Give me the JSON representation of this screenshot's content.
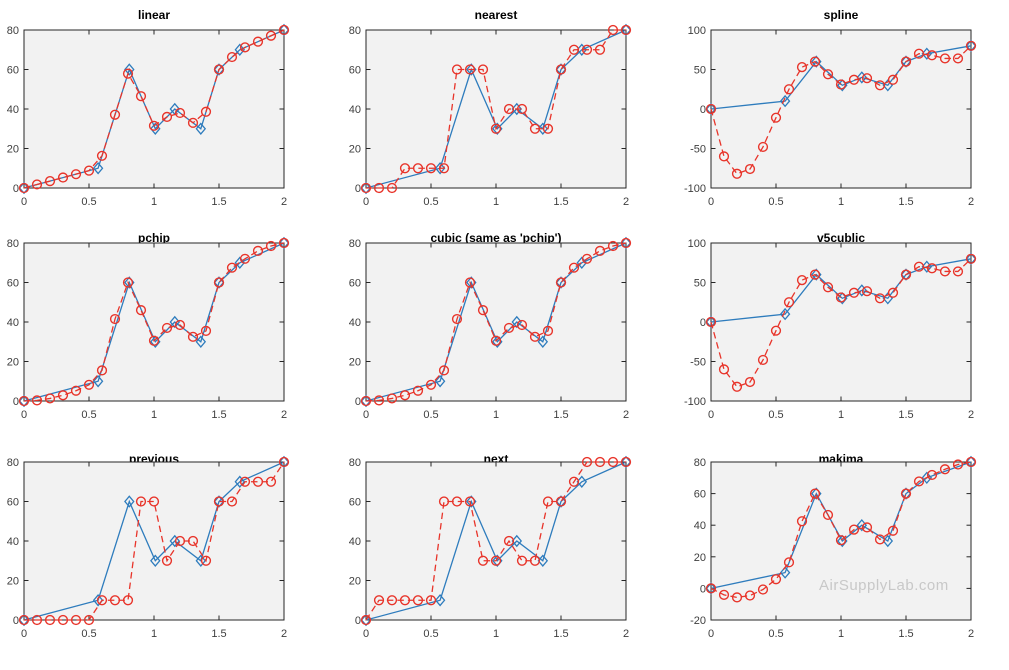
{
  "colors": {
    "blue": "#2e7cbd",
    "red": "#e8342a",
    "axes_bg": "#f2f2f2",
    "axis": "#262626",
    "tick_label": "#3e3e3e",
    "title": "#000000",
    "watermark": "#c8c8c8",
    "figure_bg": "#ffffff"
  },
  "watermark": {
    "text": "AirSupplyLab.com"
  },
  "chart_data": {
    "type": "line",
    "layout": "3x3 grid of subplots comparing interp1 methods",
    "grid": "off",
    "legend": "none",
    "xlim": [
      0,
      2
    ],
    "xticks": [
      0,
      0.5,
      1,
      1.5,
      2
    ],
    "xtick_labels": [
      "0",
      "0.5",
      "1",
      "1.5",
      "2"
    ],
    "sample_series": {
      "name": "sample-points",
      "marker": "diamond",
      "color_key": "blue",
      "line_style": "solid",
      "x": [
        0,
        0.57,
        0.81,
        1.01,
        1.16,
        1.36,
        1.5,
        1.66,
        2
      ],
      "y": [
        0,
        10,
        60,
        30,
        40,
        30,
        60,
        70,
        80
      ]
    },
    "query_series": {
      "name": "interpolated-points",
      "marker": "circle",
      "color_key": "red",
      "line_style": "dashed",
      "x": [
        0,
        0.1,
        0.2,
        0.3,
        0.4,
        0.5,
        0.6,
        0.7,
        0.8,
        0.9,
        1,
        1.1,
        1.2,
        1.3,
        1.4,
        1.5,
        1.6,
        1.7,
        1.8,
        1.9,
        2
      ]
    },
    "subplots": [
      {
        "title": "linear",
        "ylim": [
          0,
          80
        ],
        "yticks": [
          0,
          20,
          40,
          60,
          80
        ],
        "values": [
          0,
          1.8,
          3.5,
          5.3,
          7,
          8.8,
          16.3,
          37.1,
          57.9,
          46.5,
          31.5,
          36,
          38,
          33,
          38.6,
          60,
          66.3,
          71.2,
          74.1,
          77.1,
          80
        ]
      },
      {
        "title": "nearest",
        "ylim": [
          0,
          80
        ],
        "yticks": [
          0,
          20,
          40,
          60,
          80
        ],
        "values": [
          0,
          0,
          0,
          10,
          10,
          10,
          10,
          60,
          60,
          60,
          30,
          40,
          40,
          30,
          30,
          60,
          70,
          70,
          70,
          80,
          80
        ]
      },
      {
        "title": "spline",
        "ylim": [
          -100,
          100
        ],
        "yticks": [
          -100,
          -50,
          0,
          50,
          100
        ],
        "values": [
          0,
          -60,
          -82,
          -76,
          -48,
          -11,
          25,
          53,
          60,
          44,
          31,
          37,
          39,
          30,
          37,
          60,
          70,
          68,
          64,
          64,
          80
        ]
      },
      {
        "title": "pchip",
        "ylim": [
          0,
          80
        ],
        "yticks": [
          0,
          20,
          40,
          60,
          80
        ],
        "values": [
          0,
          0.3,
          1.3,
          2.9,
          5.2,
          8.2,
          15.5,
          41.5,
          60,
          46,
          30.5,
          37,
          38.5,
          32.5,
          35.5,
          60,
          67.5,
          72,
          76,
          78.5,
          80
        ]
      },
      {
        "title": "cubic (same as 'pchip')",
        "ylim": [
          0,
          80
        ],
        "yticks": [
          0,
          20,
          40,
          60,
          80
        ],
        "values": [
          0,
          0.3,
          1.3,
          2.9,
          5.2,
          8.2,
          15.5,
          41.5,
          60,
          46,
          30.5,
          37,
          38.5,
          32.5,
          35.5,
          60,
          67.5,
          72,
          76,
          78.5,
          80
        ]
      },
      {
        "title": "v5cublic",
        "ylim": [
          -100,
          100
        ],
        "yticks": [
          -100,
          -50,
          0,
          50,
          100
        ],
        "values": [
          0,
          -60,
          -82,
          -76,
          -48,
          -11,
          25,
          53,
          60,
          44,
          31,
          37,
          39,
          30,
          37,
          60,
          70,
          68,
          64,
          64,
          80
        ]
      },
      {
        "title": "previous",
        "ylim": [
          0,
          80
        ],
        "yticks": [
          0,
          20,
          40,
          60,
          80
        ],
        "values": [
          0,
          0,
          0,
          0,
          0,
          0,
          10,
          10,
          10,
          60,
          60,
          30,
          40,
          40,
          30,
          60,
          60,
          70,
          70,
          70,
          80
        ]
      },
      {
        "title": "next",
        "ylim": [
          0,
          80
        ],
        "yticks": [
          0,
          20,
          40,
          60,
          80
        ],
        "values": [
          0,
          10,
          10,
          10,
          10,
          10,
          60,
          60,
          60,
          30,
          30,
          40,
          30,
          30,
          60,
          60,
          70,
          80,
          80,
          80,
          80
        ]
      },
      {
        "title": "makima",
        "ylim": [
          -20,
          80
        ],
        "yticks": [
          -20,
          0,
          20,
          40,
          60,
          80
        ],
        "values": [
          0,
          -4.1,
          -5.7,
          -4.5,
          -0.7,
          5.8,
          16.5,
          42.5,
          60,
          46.5,
          30.5,
          37.2,
          38.6,
          31,
          36.5,
          60,
          67.7,
          71.8,
          75.4,
          78.4,
          80
        ]
      }
    ]
  }
}
